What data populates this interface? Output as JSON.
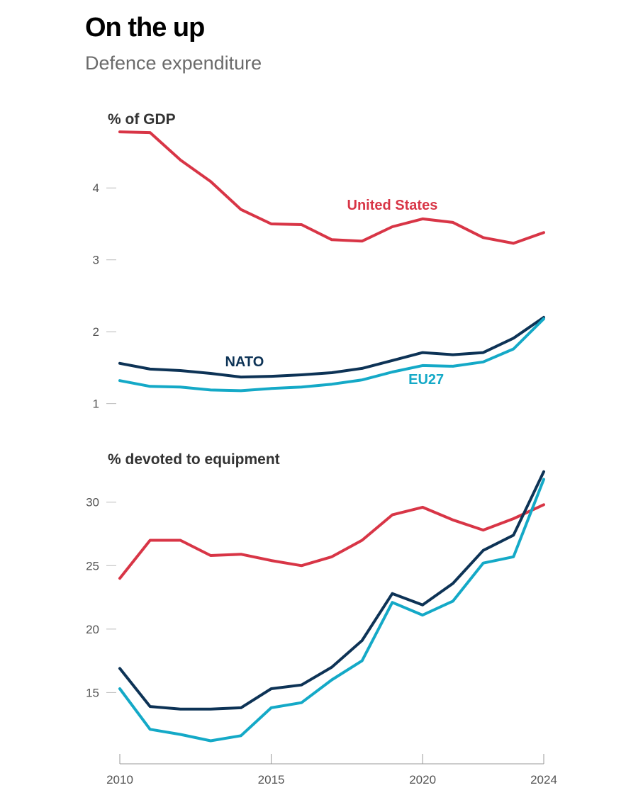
{
  "header": {
    "title": "On the up",
    "subtitle": "Defence expenditure"
  },
  "chart_data": [
    {
      "type": "line",
      "title": "% of GDP",
      "x": [
        2010,
        2011,
        2012,
        2013,
        2014,
        2015,
        2016,
        2017,
        2018,
        2019,
        2020,
        2021,
        2022,
        2023,
        2024
      ],
      "yticks": [
        1,
        2,
        3,
        4
      ],
      "ylim": [
        0.75,
        4.85
      ],
      "grid": false,
      "series": [
        {
          "name": "United States",
          "color": "#d83546",
          "values": [
            4.78,
            4.77,
            4.39,
            4.09,
            3.7,
            3.5,
            3.49,
            3.28,
            3.26,
            3.46,
            3.57,
            3.52,
            3.31,
            3.23,
            3.38
          ]
        },
        {
          "name": "NATO",
          "color": "#0d3356",
          "values": [
            1.56,
            1.48,
            1.46,
            1.42,
            1.37,
            1.38,
            1.4,
            1.43,
            1.49,
            1.6,
            1.71,
            1.68,
            1.71,
            1.91,
            2.2
          ]
        },
        {
          "name": "EU27",
          "color": "#14a9c7",
          "values": [
            1.32,
            1.24,
            1.23,
            1.19,
            1.18,
            1.21,
            1.23,
            1.27,
            1.33,
            1.44,
            1.53,
            1.52,
            1.58,
            1.76,
            2.18
          ]
        }
      ]
    },
    {
      "type": "line",
      "title": "% devoted to equipment",
      "x": [
        2010,
        2011,
        2012,
        2013,
        2014,
        2015,
        2016,
        2017,
        2018,
        2019,
        2020,
        2021,
        2022,
        2023,
        2024
      ],
      "xticks": [
        2010,
        2015,
        2020,
        2024
      ],
      "yticks": [
        15,
        20,
        25,
        30
      ],
      "ylim": [
        10.5,
        33
      ],
      "grid": false,
      "series": [
        {
          "name": "United States",
          "color": "#d83546",
          "values": [
            24.0,
            27.0,
            27.0,
            25.8,
            25.9,
            25.4,
            25.0,
            25.7,
            27.0,
            29.0,
            29.6,
            28.6,
            27.8,
            28.7,
            29.8
          ]
        },
        {
          "name": "NATO",
          "color": "#0d3356",
          "values": [
            16.9,
            13.9,
            13.7,
            13.7,
            13.8,
            15.3,
            15.6,
            17.0,
            19.1,
            22.8,
            21.9,
            23.6,
            26.2,
            27.4,
            32.4
          ]
        },
        {
          "name": "EU27",
          "color": "#14a9c7",
          "values": [
            15.3,
            12.1,
            11.7,
            11.2,
            11.6,
            13.8,
            14.2,
            16.0,
            17.5,
            22.1,
            21.1,
            22.2,
            25.2,
            25.7,
            31.8
          ]
        }
      ]
    }
  ]
}
